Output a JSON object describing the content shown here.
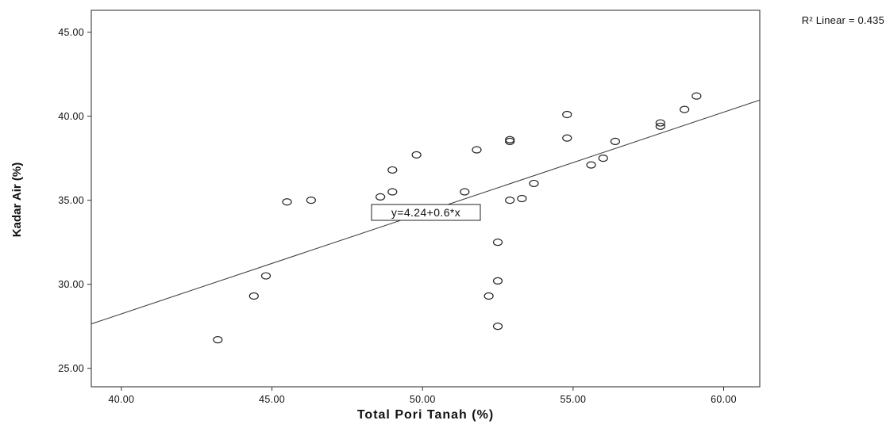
{
  "chart_data": {
    "type": "scatter",
    "xlabel": "Total Pori Tanah (%)",
    "ylabel": "Kadar Air (%)",
    "xlim": [
      39.0,
      61.2
    ],
    "ylim": [
      23.9,
      46.3
    ],
    "xticks": [
      "40.00",
      "45.00",
      "50.00",
      "55.00",
      "60.00"
    ],
    "xtick_values": [
      40,
      45,
      50,
      55,
      60
    ],
    "yticks": [
      "25.00",
      "30.00",
      "35.00",
      "40.00",
      "45.00"
    ],
    "ytick_values": [
      25,
      30,
      35,
      40,
      45
    ],
    "grid": false,
    "points": [
      {
        "x": 43.2,
        "y": 26.7
      },
      {
        "x": 44.4,
        "y": 29.3
      },
      {
        "x": 44.8,
        "y": 30.5
      },
      {
        "x": 45.5,
        "y": 34.9
      },
      {
        "x": 46.3,
        "y": 35.0
      },
      {
        "x": 48.6,
        "y": 35.2
      },
      {
        "x": 49.0,
        "y": 36.8
      },
      {
        "x": 49.0,
        "y": 35.5
      },
      {
        "x": 49.8,
        "y": 37.7
      },
      {
        "x": 51.4,
        "y": 35.5
      },
      {
        "x": 51.8,
        "y": 38.0
      },
      {
        "x": 52.2,
        "y": 29.3
      },
      {
        "x": 52.5,
        "y": 32.5
      },
      {
        "x": 52.5,
        "y": 30.2
      },
      {
        "x": 52.5,
        "y": 27.5
      },
      {
        "x": 52.9,
        "y": 38.6
      },
      {
        "x": 52.9,
        "y": 38.5
      },
      {
        "x": 52.9,
        "y": 35.0
      },
      {
        "x": 53.3,
        "y": 35.1
      },
      {
        "x": 53.7,
        "y": 36.0
      },
      {
        "x": 54.8,
        "y": 40.1
      },
      {
        "x": 54.8,
        "y": 38.7
      },
      {
        "x": 55.6,
        "y": 37.1
      },
      {
        "x": 56.0,
        "y": 37.5
      },
      {
        "x": 56.4,
        "y": 38.5
      },
      {
        "x": 57.9,
        "y": 39.6
      },
      {
        "x": 57.9,
        "y": 39.4
      },
      {
        "x": 58.7,
        "y": 40.4
      },
      {
        "x": 59.1,
        "y": 41.2
      }
    ],
    "fit_line": {
      "intercept": 4.24,
      "slope": 0.6,
      "equation": "y=4.24+0.6*x"
    },
    "r2_label": "R² Linear = 0.435"
  }
}
